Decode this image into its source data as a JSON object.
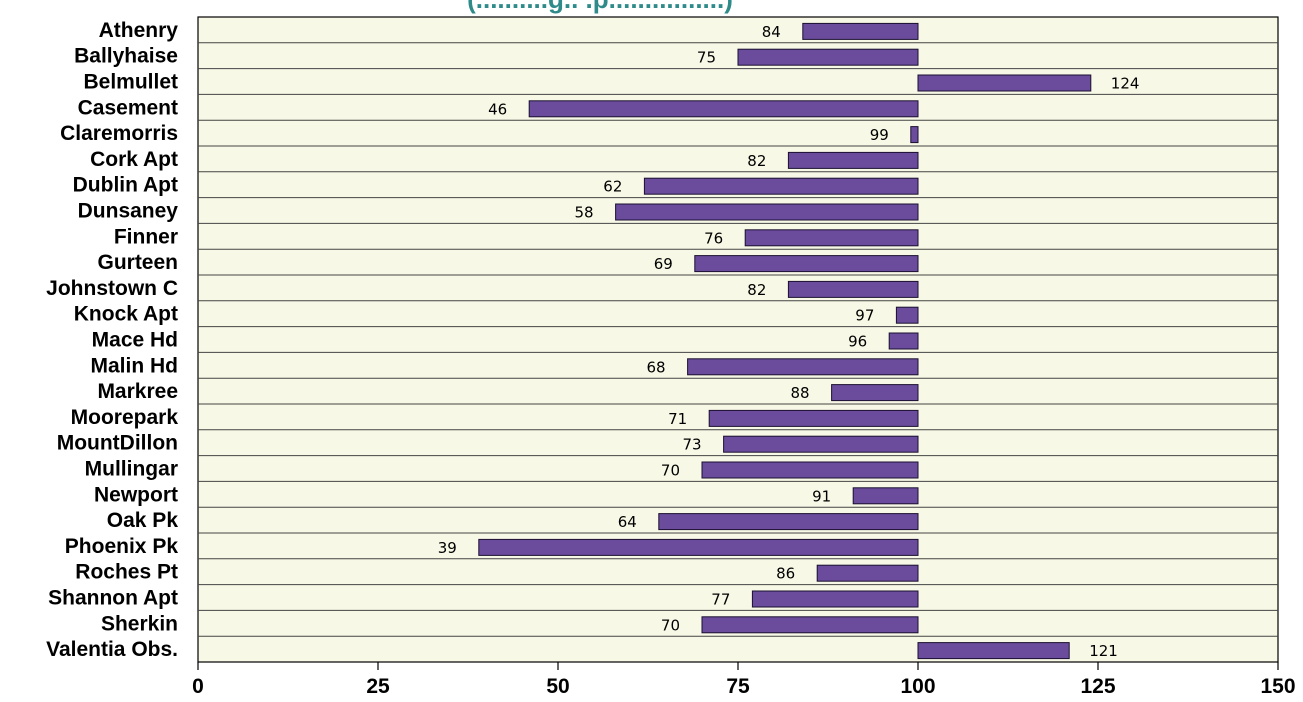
{
  "chart_data": {
    "type": "bar",
    "orientation": "horizontal",
    "title": "(..........g.. .p................)",
    "xlabel": "",
    "ylabel": "",
    "xlim": [
      0,
      150
    ],
    "baseline": 100,
    "x_ticks": [
      0,
      25,
      50,
      75,
      100,
      125,
      150
    ],
    "grid": "horizontal row separators",
    "categories": [
      "Athenry",
      "Ballyhaise",
      "Belmullet",
      "Casement",
      "Claremorris",
      "Cork Apt",
      "Dublin Apt",
      "Dunsaney",
      "Finner",
      "Gurteen",
      "Johnstown C",
      "Knock Apt",
      "Mace Hd",
      "Malin Hd",
      "Markree",
      "Moorepark",
      "MountDillon",
      "Mullingar",
      "Newport",
      "Oak Pk",
      "Phoenix Pk",
      "Roches Pt",
      "Shannon Apt",
      "Sherkin",
      "Valentia Obs."
    ],
    "values": [
      84,
      75,
      124,
      46,
      99,
      82,
      62,
      58,
      76,
      69,
      82,
      97,
      96,
      68,
      88,
      71,
      73,
      70,
      91,
      64,
      39,
      86,
      77,
      70,
      121
    ],
    "colors": {
      "bar_fill": "#6a4b9c",
      "bar_stroke": "#1a1030",
      "plot_bg": "#f8f8e6",
      "title": "#2f8a8a"
    }
  }
}
